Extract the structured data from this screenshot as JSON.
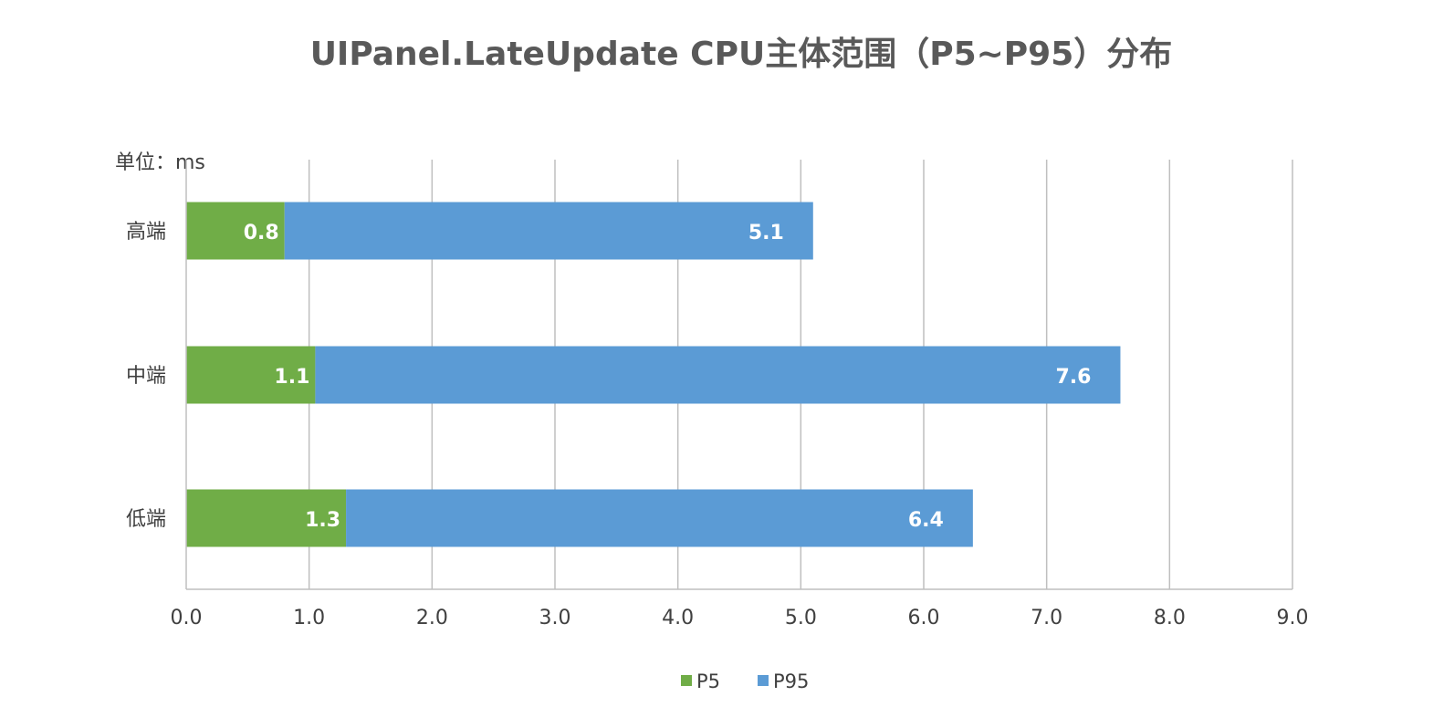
{
  "chart_data": {
    "type": "bar",
    "orientation": "horizontal",
    "stacked": true,
    "title": "UIPanel.LateUpdate CPU主体范围（P5~P95）分布",
    "unit_label": "单位：ms",
    "categories": [
      "高端",
      "中端",
      "低端"
    ],
    "series": [
      {
        "name": "P5",
        "values": [
          0.8,
          1.05,
          1.3
        ],
        "labels": [
          "0.8",
          "1.1",
          "1.3"
        ],
        "color": "#70AD47"
      },
      {
        "name": "P95",
        "values": [
          5.1,
          7.6,
          6.4
        ],
        "labels": [
          "5.1",
          "7.6",
          "6.4"
        ],
        "color": "#5B9BD5"
      }
    ],
    "x_ticks": [
      "0.0",
      "1.0",
      "2.0",
      "3.0",
      "4.0",
      "5.0",
      "6.0",
      "7.0",
      "8.0",
      "9.0"
    ],
    "xlim": [
      0,
      9
    ],
    "grid": true,
    "legend_position": "bottom"
  }
}
